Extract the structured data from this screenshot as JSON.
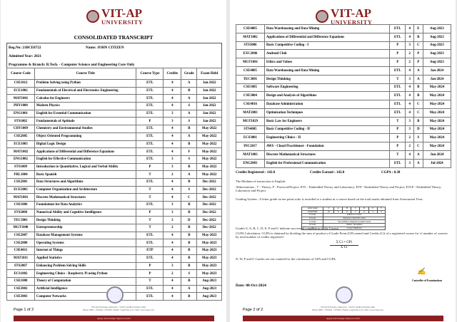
{
  "logo": {
    "text1": "VIT-AP",
    "text2": "UNIVERSITY"
  },
  "title": "CONSOLIDATED TRANSCRIPT",
  "student": {
    "reg": "Reg.No: 21BCE8722",
    "name": "Name:  JOHN CITIZEN",
    "admitted": "Admitted Year: 2021",
    "programme": "Programme & Branch: B.Tech. - Computer Science and Engineering Core Only"
  },
  "headers": [
    "Course Code",
    "Course Title",
    "Course Type",
    "Credits",
    "Grade",
    "Exam Held"
  ],
  "page1_rows": [
    [
      "CSE1012",
      "Problem Solving using Python",
      "ETL",
      "4",
      "A",
      "Jan-2022"
    ],
    [
      "ECE1002",
      "Fundamentals of Electrical and Electronics Engineering",
      "ETL",
      "4",
      "B",
      "Jan-2022"
    ],
    [
      "MAT1001",
      "Calculus for Engineers",
      "ETL",
      "4",
      "A",
      "Jan-2022"
    ],
    [
      "PHY1008",
      "Modern Physics",
      "ETL",
      "4",
      "S",
      "Jan-2022"
    ],
    [
      "ENG1001",
      "English for Essential Communication",
      "ETL",
      "3",
      "A",
      "Jan-2022"
    ],
    [
      "STS1002",
      "Fundamentals of Aptitude",
      "P",
      "3",
      "S",
      "Jan-2022"
    ],
    [
      "CHY1009",
      "Chemistry and Environmental Studies",
      "ETL",
      "4",
      "B",
      "May-2022"
    ],
    [
      "CSE2005",
      "Object Oriented Programming",
      "ETL",
      "4",
      "A",
      "May-2022"
    ],
    [
      "ECE1003",
      "Digital Logic Design",
      "ETL",
      "4",
      "B",
      "May-2022"
    ],
    [
      "MAT1002",
      "Applications of Differential and Difference Equations",
      "ETL",
      "4",
      "F",
      "May-2022"
    ],
    [
      "ENG1002",
      "English for Effective Communication",
      "ETL",
      "3",
      "S",
      "May-2022"
    ],
    [
      "STS1009",
      "Introduction to Quantitative, Logical and Verbal Ability",
      "P",
      "3",
      "B",
      "May-2022"
    ],
    [
      "FRL1004",
      "Basic Spanish",
      "T",
      "2",
      "A",
      "May-2022"
    ],
    [
      "CSE2001",
      "Data Structures and Algorithms",
      "ETL",
      "4",
      "B",
      "Dec-2022"
    ],
    [
      "ECE2002",
      "Computer Organization and Architecture",
      "T",
      "4",
      "S",
      "Dec-2022"
    ],
    [
      "MAT1003",
      "Discrete Mathematical Structures",
      "T",
      "4",
      "C",
      "Dec-2022"
    ],
    [
      "CSE1006",
      "Foundations for Data Analytics",
      "ETL",
      "3",
      "B",
      "Dec-2022"
    ],
    [
      "STS2008",
      "Numerical Ability and Cognitive Intelligence",
      "P",
      "3",
      "B",
      "Dec-2022"
    ],
    [
      "TEC3001",
      "Design Thinking",
      "T",
      "3",
      "D",
      "Dec-2022"
    ],
    [
      "MGT1040",
      "Entrepreneurship",
      "T",
      "2",
      "B",
      "Dec-2022"
    ],
    [
      "CSE2007",
      "Database Management Systems",
      "ETL",
      "4",
      "B",
      "May-2023"
    ],
    [
      "CSE2008",
      "Operating Systems",
      "ETL",
      "4",
      "B",
      "May-2023"
    ],
    [
      "CSE4011",
      "Internet of Things",
      "ETP",
      "4",
      "B",
      "May-2023"
    ],
    [
      "MAT1011",
      "Applied Statistics",
      "ETL",
      "4",
      "B",
      "May-2023"
    ],
    [
      "STS2007",
      "Enhancing Problem Solving Skills",
      "P",
      "3",
      "B",
      "May-2023"
    ],
    [
      "ECS1002",
      "Engineering Clinics - Raspberry Pi using Python",
      "P",
      "2",
      "S",
      "May-2023"
    ],
    [
      "CSE1008",
      "Theory of Computation",
      "T",
      "4",
      "B",
      "Aug-2023"
    ],
    [
      "CSE3002",
      "Artificial Intelligence",
      "ETL",
      "4",
      "A",
      "Aug-2023"
    ],
    [
      "CSE3003",
      "Computer Networks",
      "ETL",
      "4",
      "B",
      "Aug-2023"
    ]
  ],
  "page2_rows": [
    [
      "CSE4005",
      "Data Warehousing and Data Mining",
      "ETL",
      "4",
      "E",
      "Aug-2023"
    ],
    [
      "MAT1002",
      "Applications of Differential and Difference Equations",
      "ETL",
      "4",
      "B",
      "Aug-2023"
    ],
    [
      "STS3006",
      "Basic Competitive Coding - I",
      "P",
      "3",
      "C",
      "Aug-2023"
    ],
    [
      "EXC2006",
      "Android Club",
      "P",
      "2",
      "P",
      "Aug-2023"
    ],
    [
      "MGT1001",
      "Ethics and Values",
      "P",
      "2",
      "P",
      "Aug-2023"
    ],
    [
      "CSE4005",
      "Data Warehousing and Data Mining",
      "ETL",
      "4",
      "A",
      "Jan-2024"
    ],
    [
      "TEC3001",
      "Design Thinking",
      "T",
      "3",
      "A",
      "Jan-2024"
    ],
    [
      "CSE1005",
      "Software Engineering",
      "ETL",
      "4",
      "B",
      "May-2024"
    ],
    [
      "CSE3004",
      "Design and Analysis of Algorithms",
      "ETL",
      "4",
      "B",
      "May-2024"
    ],
    [
      "CSE4016",
      "Database Administration",
      "ETL",
      "4",
      "C",
      "May-2024"
    ],
    [
      "MAT2003",
      "Optimization Techniques",
      "ETL",
      "4",
      "C",
      "May-2024"
    ],
    [
      "MGT1029",
      "Basic Law for Engineers",
      "T",
      "3",
      "B",
      "May-2024"
    ],
    [
      "STS4005",
      "Basic Competitive Coding - II",
      "P",
      "3",
      "D",
      "May-2024"
    ],
    [
      "ECS3001",
      "Engineering Clinics - II",
      "P",
      "2",
      "S",
      "May-2024"
    ],
    [
      "INC2017",
      "AWS - Cloud Practitioner - Foundation",
      "P",
      "2",
      "C",
      "May-2024"
    ],
    [
      "MAT1003",
      "Discrete Mathematical Structures",
      "T",
      "4",
      "A",
      "Jun-2024"
    ],
    [
      "ENG2001",
      "English for Professional Communication",
      "ETL",
      "3",
      "A",
      "Jul-2024"
    ]
  ],
  "summary": {
    "registered": "Credits Registered : 142.0",
    "earned": "Credits Earned : 142.0",
    "cgpa": "CGPA : 8.38"
  },
  "notes": {
    "medium": "The Medium of instruction is English.",
    "abbrev": "Abbreviations : T - Theory;  P - Practical/Project;  ETL - Embedded Theory and Laboratory;  ETP - Embedded Theory and Project;  ETLP - Embedded Theory, Laboratory and Project",
    "grading": "Grading System :  A letter grade on ten point scale is awarded to a student in a course based on the total marks obtained from Assessment Tests",
    "completion": "Grades S, A, B, C, D, E, P and U indicate successful completion of the Course",
    "cgpa_calc": "CGPA Calculation: CGPA is obtained by dividing the sum of product of Grade Point (GP) earned and Credits (Ci) of a registered course for 'n' number of courses by total number of credits registered",
    "formula_num": "Σ Ci × GPi",
    "formula_den": "Σ Ci",
    "not_counted": "N, W, P and U Grades are not counted for the calculation of GPA and CGPA."
  },
  "grade_table": {
    "letters": [
      "Letter Grade",
      "S",
      "A",
      "B",
      "C",
      "D",
      "E",
      "F"
    ],
    "points": [
      "Grade Point",
      "10",
      "9",
      "8",
      "7",
      "6",
      "5",
      "0"
    ],
    "rows": [
      [
        "F Grade",
        "Failed in a Course"
      ],
      [
        "P Grade",
        "Passed in a Pass/Fail course"
      ],
      [
        "U Grade",
        "Successfully Completed an Audit Course"
      ],
      [
        "N Grade",
        "Absent / Incomplete"
      ],
      [
        "W",
        "Course Withdrawn"
      ]
    ]
  },
  "date": "Date: 08-Oct-2024",
  "signatory": "Controller of Examinations",
  "footer": {
    "page1": "Page 1 of 2",
    "page2": "Page 2 of 2",
    "address": "VIT-AP University, Amaravati - 522237, Andhra Pradesh, India",
    "contact": "Phone: 0863 - 2370444 / 2370455 | Email: coe@vitap.ac.in | Web: www.vitap.ac.in",
    "tagline": "Apply Knowledge. Improve Life!"
  }
}
